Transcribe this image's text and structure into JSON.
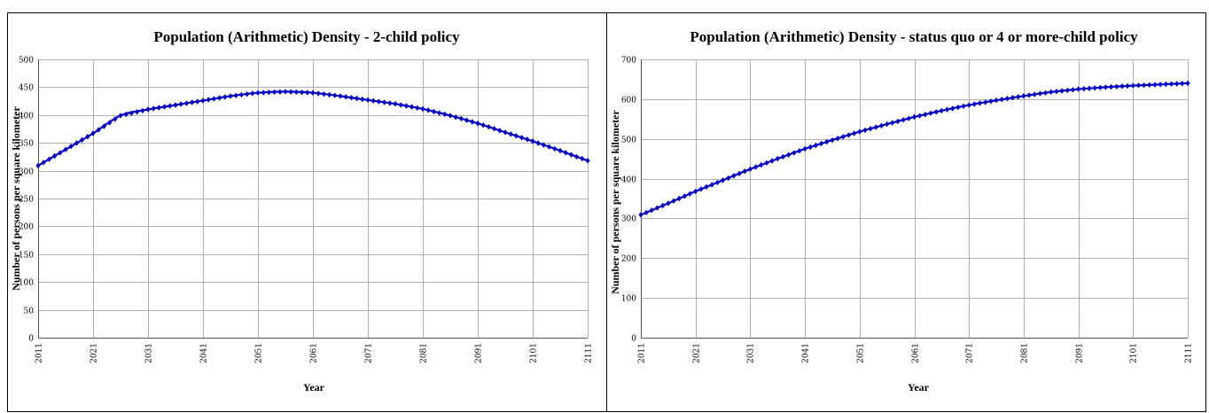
{
  "chart_data": [
    {
      "type": "line",
      "title": "Population (Arithmetic) Density - 2-child policy",
      "xlabel": "Year",
      "ylabel": "Number of persons per square kilometer",
      "xlim": [
        2011,
        2111
      ],
      "ylim": [
        0,
        500
      ],
      "yticks": [
        0,
        50,
        100,
        150,
        200,
        250,
        300,
        350,
        400,
        450,
        500
      ],
      "xticks": [
        2011,
        2021,
        2031,
        2041,
        2051,
        2061,
        2071,
        2081,
        2091,
        2101,
        2111
      ],
      "grid": true,
      "legend": "none",
      "series_color": "#0000cc",
      "series": [
        {
          "x": [
            2011,
            2016,
            2021,
            2026,
            2031,
            2036,
            2041,
            2046,
            2051,
            2056,
            2061,
            2066,
            2071,
            2076,
            2081,
            2086,
            2091,
            2096,
            2101,
            2106,
            2111
          ],
          "values": [
            309,
            338,
            367,
            399,
            410,
            418,
            426,
            434,
            440,
            442,
            440,
            434,
            427,
            420,
            411,
            399,
            385,
            369,
            353,
            336,
            318
          ]
        }
      ]
    },
    {
      "type": "line",
      "title": "Population (Arithmetic) Density - status quo or 4 or more-child policy",
      "xlabel": "Year",
      "ylabel": "Number of persons per square kilometer",
      "xlim": [
        2011,
        2111
      ],
      "ylim": [
        0,
        700
      ],
      "yticks": [
        0,
        100,
        200,
        300,
        400,
        500,
        600,
        700
      ],
      "xticks": [
        2011,
        2021,
        2031,
        2041,
        2051,
        2061,
        2071,
        2081,
        2091,
        2101,
        2111
      ],
      "grid": true,
      "legend": "none",
      "series_color": "#0000cc",
      "series": [
        {
          "x": [
            2011,
            2016,
            2021,
            2026,
            2031,
            2036,
            2041,
            2046,
            2051,
            2056,
            2061,
            2066,
            2071,
            2076,
            2081,
            2086,
            2091,
            2096,
            2101,
            2106,
            2111
          ],
          "values": [
            309,
            338,
            368,
            396,
            424,
            450,
            475,
            497,
            518,
            537,
            555,
            571,
            585,
            597,
            608,
            618,
            625,
            630,
            634,
            637,
            640
          ]
        }
      ]
    }
  ]
}
